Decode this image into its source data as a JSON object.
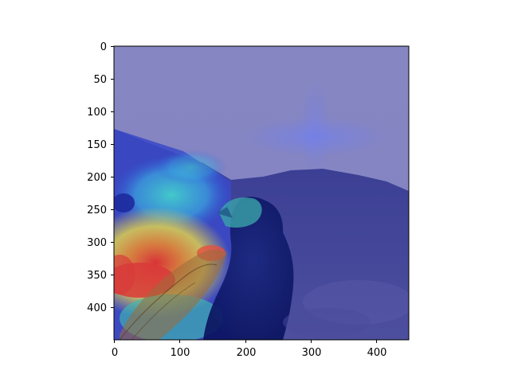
{
  "figure": {
    "image_description": "Grad-CAM style heatmap overlay on a photo of a dark bird against a hazy mountain background",
    "x_ticks": [
      "0",
      "100",
      "200",
      "300",
      "400"
    ],
    "y_ticks": [
      "0",
      "50",
      "100",
      "150",
      "200",
      "250",
      "300",
      "350",
      "400"
    ],
    "colormap": "jet",
    "colors": {
      "background_overlay": "#7f7fbf",
      "hot": "#d83a3a",
      "warm": "#e6d34a",
      "cool": "#45d3c8",
      "cold": "#1f2fb0"
    }
  }
}
